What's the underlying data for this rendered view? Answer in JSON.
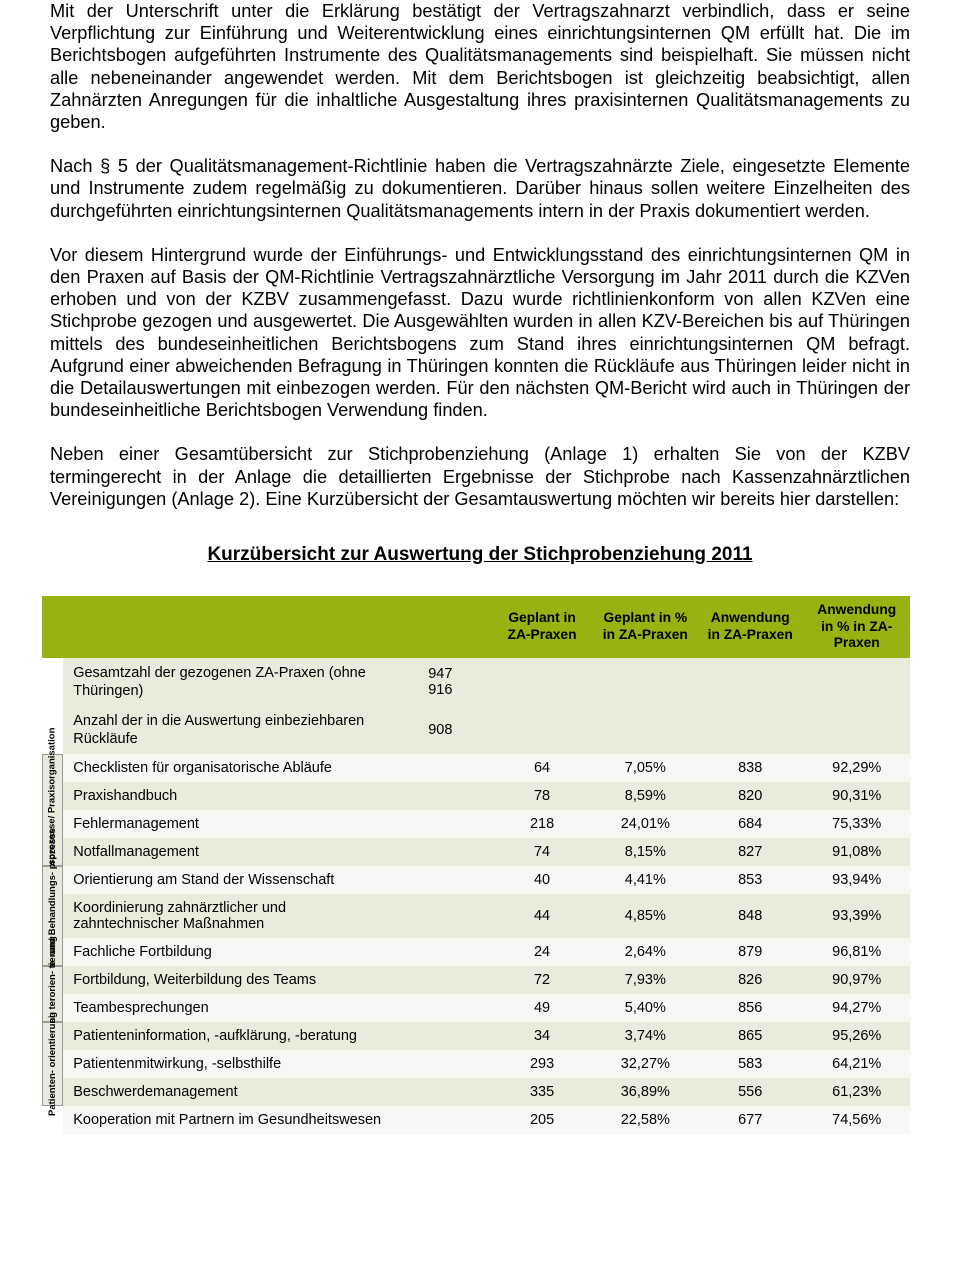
{
  "colors": {
    "header_bg": "#97b312",
    "band_a": "#eceadb",
    "band_b": "#f8f8f2",
    "text": "#000000",
    "page_bg": "#ffffff",
    "cat_border": "#999999"
  },
  "paragraphs": {
    "p1": "Mit der Unterschrift unter die Erklärung bestätigt der Vertragszahnarzt verbindlich, dass er seine Verpflichtung zur Einführung und Weiterentwicklung eines einrichtungsinternen QM erfüllt hat. Die im Berichtsbogen aufgeführten Instrumente des Qualitätsmanagements sind beispielhaft. Sie müssen nicht alle nebeneinander angewendet werden. Mit dem Berichtsbogen ist gleichzeitig beabsichtigt, allen Zahnärzten Anregungen für die inhaltliche Ausgestaltung ihres praxisinternen Qualitätsmanagements zu geben.",
    "p2": "Nach § 5 der Qualitätsmanagement-Richtlinie haben die Vertragszahnärzte Ziele, eingesetzte Elemente und Instrumente zudem regelmäßig zu dokumentieren. Darüber hinaus sollen weitere Einzelheiten des durchgeführten einrichtungsinternen Qualitätsmanagements intern in der Praxis dokumentiert werden.",
    "p3": "Vor diesem Hintergrund wurde der Einführungs- und Entwicklungsstand des einrichtungsinternen QM in den Praxen auf Basis der QM-Richtlinie Vertragszahnärztliche Versorgung im Jahr 2011 durch die KZVen erhoben und von der KZBV zusammengefasst. Dazu wurde richtlinienkonform von allen KZVen eine Stichprobe gezogen und ausgewertet. Die Ausgewählten wurden in allen KZV-Bereichen bis auf Thüringen mittels des bundeseinheitlichen Berichtsbogens zum Stand ihres einrichtungsinternen QM befragt. Aufgrund einer abweichenden Befragung in Thüringen konnten die Rückläufe aus Thüringen leider nicht in die Detailauswertungen mit einbezogen werden. Für den nächsten QM-Bericht wird auch in Thüringen der bundeseinheitliche Berichtsbogen Verwendung finden.",
    "p4": "Neben einer Gesamtübersicht zur Stichprobenziehung (Anlage 1) erhalten Sie von der KZBV termingerecht in der Anlage die detaillierten Ergebnisse der Stichprobe nach Kassenzahnärztlichen Vereinigungen (Anlage 2). Eine Kurzübersicht der Gesamtauswertung möchten wir bereits hier darstellen:"
  },
  "heading": "Kurzübersicht zur Auswertung der Stichprobenziehung 2011",
  "table": {
    "columns": {
      "c1": "Geplant in ZA-Praxen",
      "c2": "Geplant in % in ZA-Praxen",
      "c3": "Anwendung in ZA-Praxen",
      "c4": "Anwendung in % in ZA-Praxen"
    },
    "meta": {
      "r1_label": "Gesamtzahl der gezogenen ZA-Praxen (ohne Thüringen)",
      "r1_v1": "947",
      "r1_v2": "916",
      "r2_label": "Anzahl der in die Auswertung einbeziehbaren Rückläufe",
      "r2_v": "908"
    },
    "categories": {
      "cat1": "Arbeitsprozesse/ Praxisorganisation",
      "cat2": "Diagnose- und Behandlungs- prozesse",
      "cat3": "Mitarbei- terorien- tierung",
      "cat4": "Patienten- orientierung"
    },
    "rows": {
      "r1": {
        "name": "Checklisten für organisatorische Abläufe",
        "g": "64",
        "gp": "7,05%",
        "a": "838",
        "ap": "92,29%"
      },
      "r2": {
        "name": "Praxishandbuch",
        "g": "78",
        "gp": "8,59%",
        "a": "820",
        "ap": "90,31%"
      },
      "r3": {
        "name": "Fehlermanagement",
        "g": "218",
        "gp": "24,01%",
        "a": "684",
        "ap": "75,33%"
      },
      "r4": {
        "name": "Notfallmanagement",
        "g": "74",
        "gp": "8,15%",
        "a": "827",
        "ap": "91,08%"
      },
      "r5": {
        "name": "Orientierung am Stand der Wissenschaft",
        "g": "40",
        "gp": "4,41%",
        "a": "853",
        "ap": "93,94%"
      },
      "r6": {
        "name": "Koordinierung zahnärztlicher und zahntechnischer Maßnahmen",
        "g": "44",
        "gp": "4,85%",
        "a": "848",
        "ap": "93,39%"
      },
      "r7": {
        "name": "Fachliche Fortbildung",
        "g": "24",
        "gp": "2,64%",
        "a": "879",
        "ap": "96,81%"
      },
      "r8": {
        "name": "Fortbildung, Weiterbildung des Teams",
        "g": "72",
        "gp": "7,93%",
        "a": "826",
        "ap": "90,97%"
      },
      "r9": {
        "name": "Teambesprechungen",
        "g": "49",
        "gp": "5,40%",
        "a": "856",
        "ap": "94,27%"
      },
      "r10": {
        "name": "Patienteninformation, -aufklärung, -beratung",
        "g": "34",
        "gp": "3,74%",
        "a": "865",
        "ap": "95,26%"
      },
      "r11": {
        "name": "Patientenmitwirkung, -selbsthilfe",
        "g": "293",
        "gp": "32,27%",
        "a": "583",
        "ap": "64,21%"
      },
      "r12": {
        "name": "Beschwerdemanagement",
        "g": "335",
        "gp": "36,89%",
        "a": "556",
        "ap": "61,23%"
      },
      "r13": {
        "name": "Kooperation mit Partnern im Gesundheitswesen",
        "g": "205",
        "gp": "22,58%",
        "a": "677",
        "ap": "74,56%"
      }
    }
  }
}
